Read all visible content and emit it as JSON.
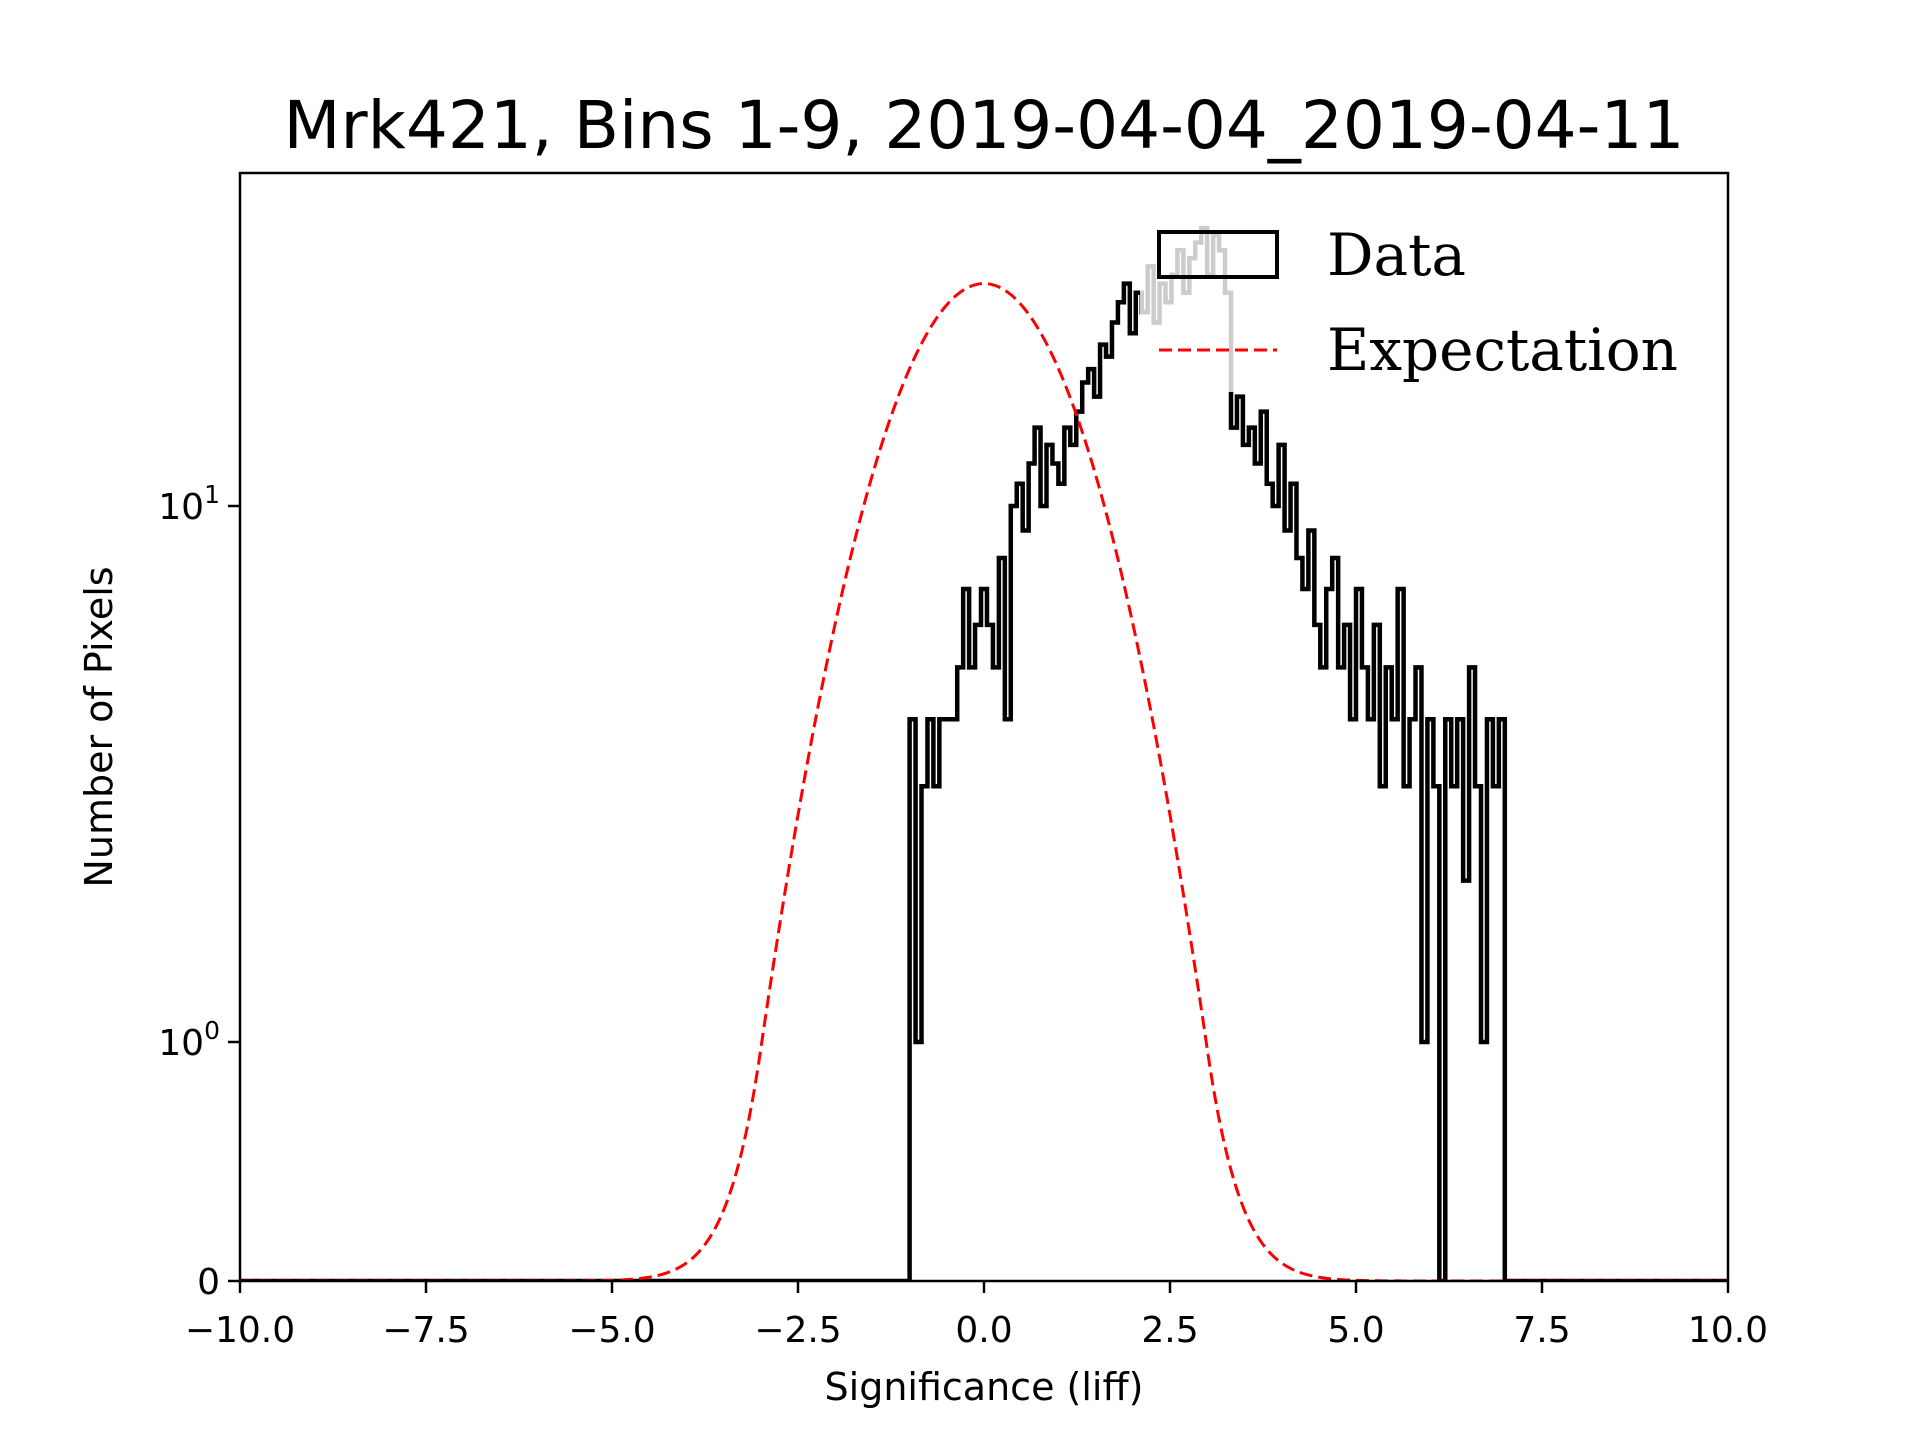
{
  "chart_data": {
    "type": "histogram",
    "title": "Mrk421, Bins 1-9, 2019-04-04_2019-04-11",
    "xlabel": "Significance (liff)",
    "ylabel": "Number of Pixels",
    "xlim": [
      -10.0,
      10.0
    ],
    "yscale": "symlog",
    "ylim": [
      0,
      42
    ],
    "x_ticks": [
      {
        "value": -10.0,
        "label": "−10.0"
      },
      {
        "value": -7.5,
        "label": "−7.5"
      },
      {
        "value": -5.0,
        "label": "−5.0"
      },
      {
        "value": -2.5,
        "label": "−2.5"
      },
      {
        "value": 0.0,
        "label": "0.0"
      },
      {
        "value": 2.5,
        "label": "2.5"
      },
      {
        "value": 5.0,
        "label": "5.0"
      },
      {
        "value": 7.5,
        "label": "7.5"
      },
      {
        "value": 10.0,
        "label": "10.0"
      }
    ],
    "y_ticks": [
      {
        "value": 0,
        "label": "0",
        "sup": ""
      },
      {
        "value": 1,
        "label": "10",
        "sup": "0"
      },
      {
        "value": 10,
        "label": "10",
        "sup": "1"
      }
    ],
    "legend": {
      "position": "top-right",
      "entries": [
        {
          "label": "Data",
          "style": "step-outline",
          "color": "#000000"
        },
        {
          "label": "Expectation",
          "style": "dashed",
          "color": "#ff0000"
        }
      ]
    },
    "series": [
      {
        "name": "Data",
        "kind": "step",
        "color": "#000000",
        "bin_start": -1.0,
        "bin_width": 0.08,
        "counts": [
          4,
          1,
          3,
          4,
          3,
          4,
          4,
          4,
          5,
          7,
          5,
          6,
          7,
          6,
          5,
          8,
          4,
          10,
          11,
          9,
          12,
          14,
          10,
          13,
          12,
          11,
          14,
          13,
          15,
          17,
          18,
          16,
          20,
          19,
          22,
          24,
          26,
          21,
          25,
          23,
          28,
          22,
          26,
          24,
          27,
          30,
          25,
          29,
          31,
          33,
          27,
          32,
          30,
          25,
          14,
          16,
          13,
          14,
          12,
          15,
          11,
          10,
          13,
          9,
          11,
          8,
          7,
          9,
          6,
          5,
          7,
          8,
          5,
          6,
          4,
          7,
          5,
          4,
          6,
          3,
          5,
          4,
          7,
          3,
          4,
          5,
          1,
          4,
          3,
          0,
          4,
          3,
          4,
          2,
          5,
          3,
          1,
          4,
          3,
          4
        ],
        "after_last_bin": 0,
        "before_first_bin": 0
      },
      {
        "name": "Expectation",
        "kind": "gaussian",
        "color": "#ff0000",
        "linestyle": "dashed",
        "amplitude": 26,
        "mean": 0.0,
        "sigma": 1.17
      }
    ]
  }
}
